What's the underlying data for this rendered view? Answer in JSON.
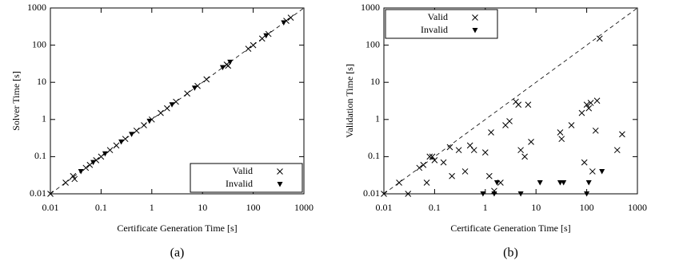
{
  "chart_data": [
    {
      "type": "scatter",
      "caption": "(a)",
      "xlabel": "Certificate Generation Time [s]",
      "ylabel": "Solver Time [s]",
      "xlim": [
        0.01,
        1000
      ],
      "ylim": [
        0.01,
        1000
      ],
      "xticks": [
        0.01,
        0.1,
        1,
        10,
        100,
        1000
      ],
      "yticks": [
        0.01,
        0.1,
        1,
        10,
        100,
        1000
      ],
      "log_x": true,
      "log_y": true,
      "diagonal": true,
      "legend": "lower right",
      "series": [
        {
          "name": "Valid",
          "color": "#000000",
          "marker": "x",
          "x": [
            0.01,
            0.02,
            0.028,
            0.03,
            0.05,
            0.06,
            0.08,
            0.1,
            0.15,
            0.2,
            0.3,
            0.5,
            0.7,
            1,
            1.5,
            2,
            3,
            5,
            8,
            12,
            30,
            32,
            80,
            100,
            150,
            200,
            450,
            550
          ],
          "y": [
            0.01,
            0.02,
            0.03,
            0.025,
            0.05,
            0.06,
            0.08,
            0.1,
            0.15,
            0.2,
            0.3,
            0.5,
            0.7,
            1,
            1.5,
            2,
            3,
            5,
            8,
            12,
            30,
            28,
            80,
            100,
            150,
            200,
            450,
            550
          ]
        },
        {
          "name": "Invalid",
          "color": "#000000",
          "marker": "triangle-down",
          "x": [
            0.04,
            0.07,
            0.12,
            0.25,
            0.4,
            0.9,
            2.5,
            7,
            25,
            35,
            180,
            400
          ],
          "y": [
            0.04,
            0.07,
            0.12,
            0.25,
            0.4,
            0.9,
            2.5,
            7,
            25,
            35,
            180,
            400
          ]
        }
      ]
    },
    {
      "type": "scatter",
      "caption": "(b)",
      "xlabel": "Certificate Generation Time [s]",
      "ylabel": "Validation Time [s]",
      "xlim": [
        0.01,
        1000
      ],
      "ylim": [
        0.01,
        1000
      ],
      "xticks": [
        0.01,
        0.1,
        1,
        10,
        100,
        1000
      ],
      "yticks": [
        0.01,
        0.1,
        1,
        10,
        100,
        1000
      ],
      "log_x": true,
      "log_y": true,
      "diagonal": true,
      "legend": "upper left",
      "series": [
        {
          "name": "Valid",
          "color": "#000000",
          "marker": "x",
          "x": [
            0.01,
            0.02,
            0.03,
            0.05,
            0.06,
            0.07,
            0.08,
            0.09,
            0.1,
            0.15,
            0.2,
            0.22,
            0.3,
            0.4,
            0.5,
            0.6,
            1,
            1.2,
            1.3,
            1.5,
            2,
            2.5,
            3,
            4,
            4.5,
            5,
            6,
            7,
            8,
            30,
            32,
            50,
            80,
            90,
            100,
            110,
            120,
            130,
            150,
            160,
            180,
            400,
            500
          ],
          "y": [
            0.01,
            0.02,
            0.01,
            0.05,
            0.06,
            0.02,
            0.1,
            0.1,
            0.08,
            0.07,
            0.18,
            0.03,
            0.15,
            0.04,
            0.2,
            0.15,
            0.13,
            0.03,
            0.45,
            0.012,
            0.02,
            0.7,
            0.9,
            3,
            2.5,
            0.15,
            0.1,
            2.5,
            0.25,
            0.45,
            0.3,
            0.7,
            1.5,
            0.07,
            2.5,
            2,
            2.8,
            0.04,
            0.5,
            3.2,
            150,
            0.15,
            0.4
          ]
        },
        {
          "name": "Invalid",
          "color": "#000000",
          "marker": "triangle-down",
          "x": [
            0.9,
            1.5,
            1.7,
            5,
            12,
            30,
            35,
            100,
            110,
            200
          ],
          "y": [
            0.01,
            0.01,
            0.02,
            0.01,
            0.02,
            0.02,
            0.02,
            0.01,
            0.02,
            0.04
          ]
        }
      ]
    }
  ]
}
